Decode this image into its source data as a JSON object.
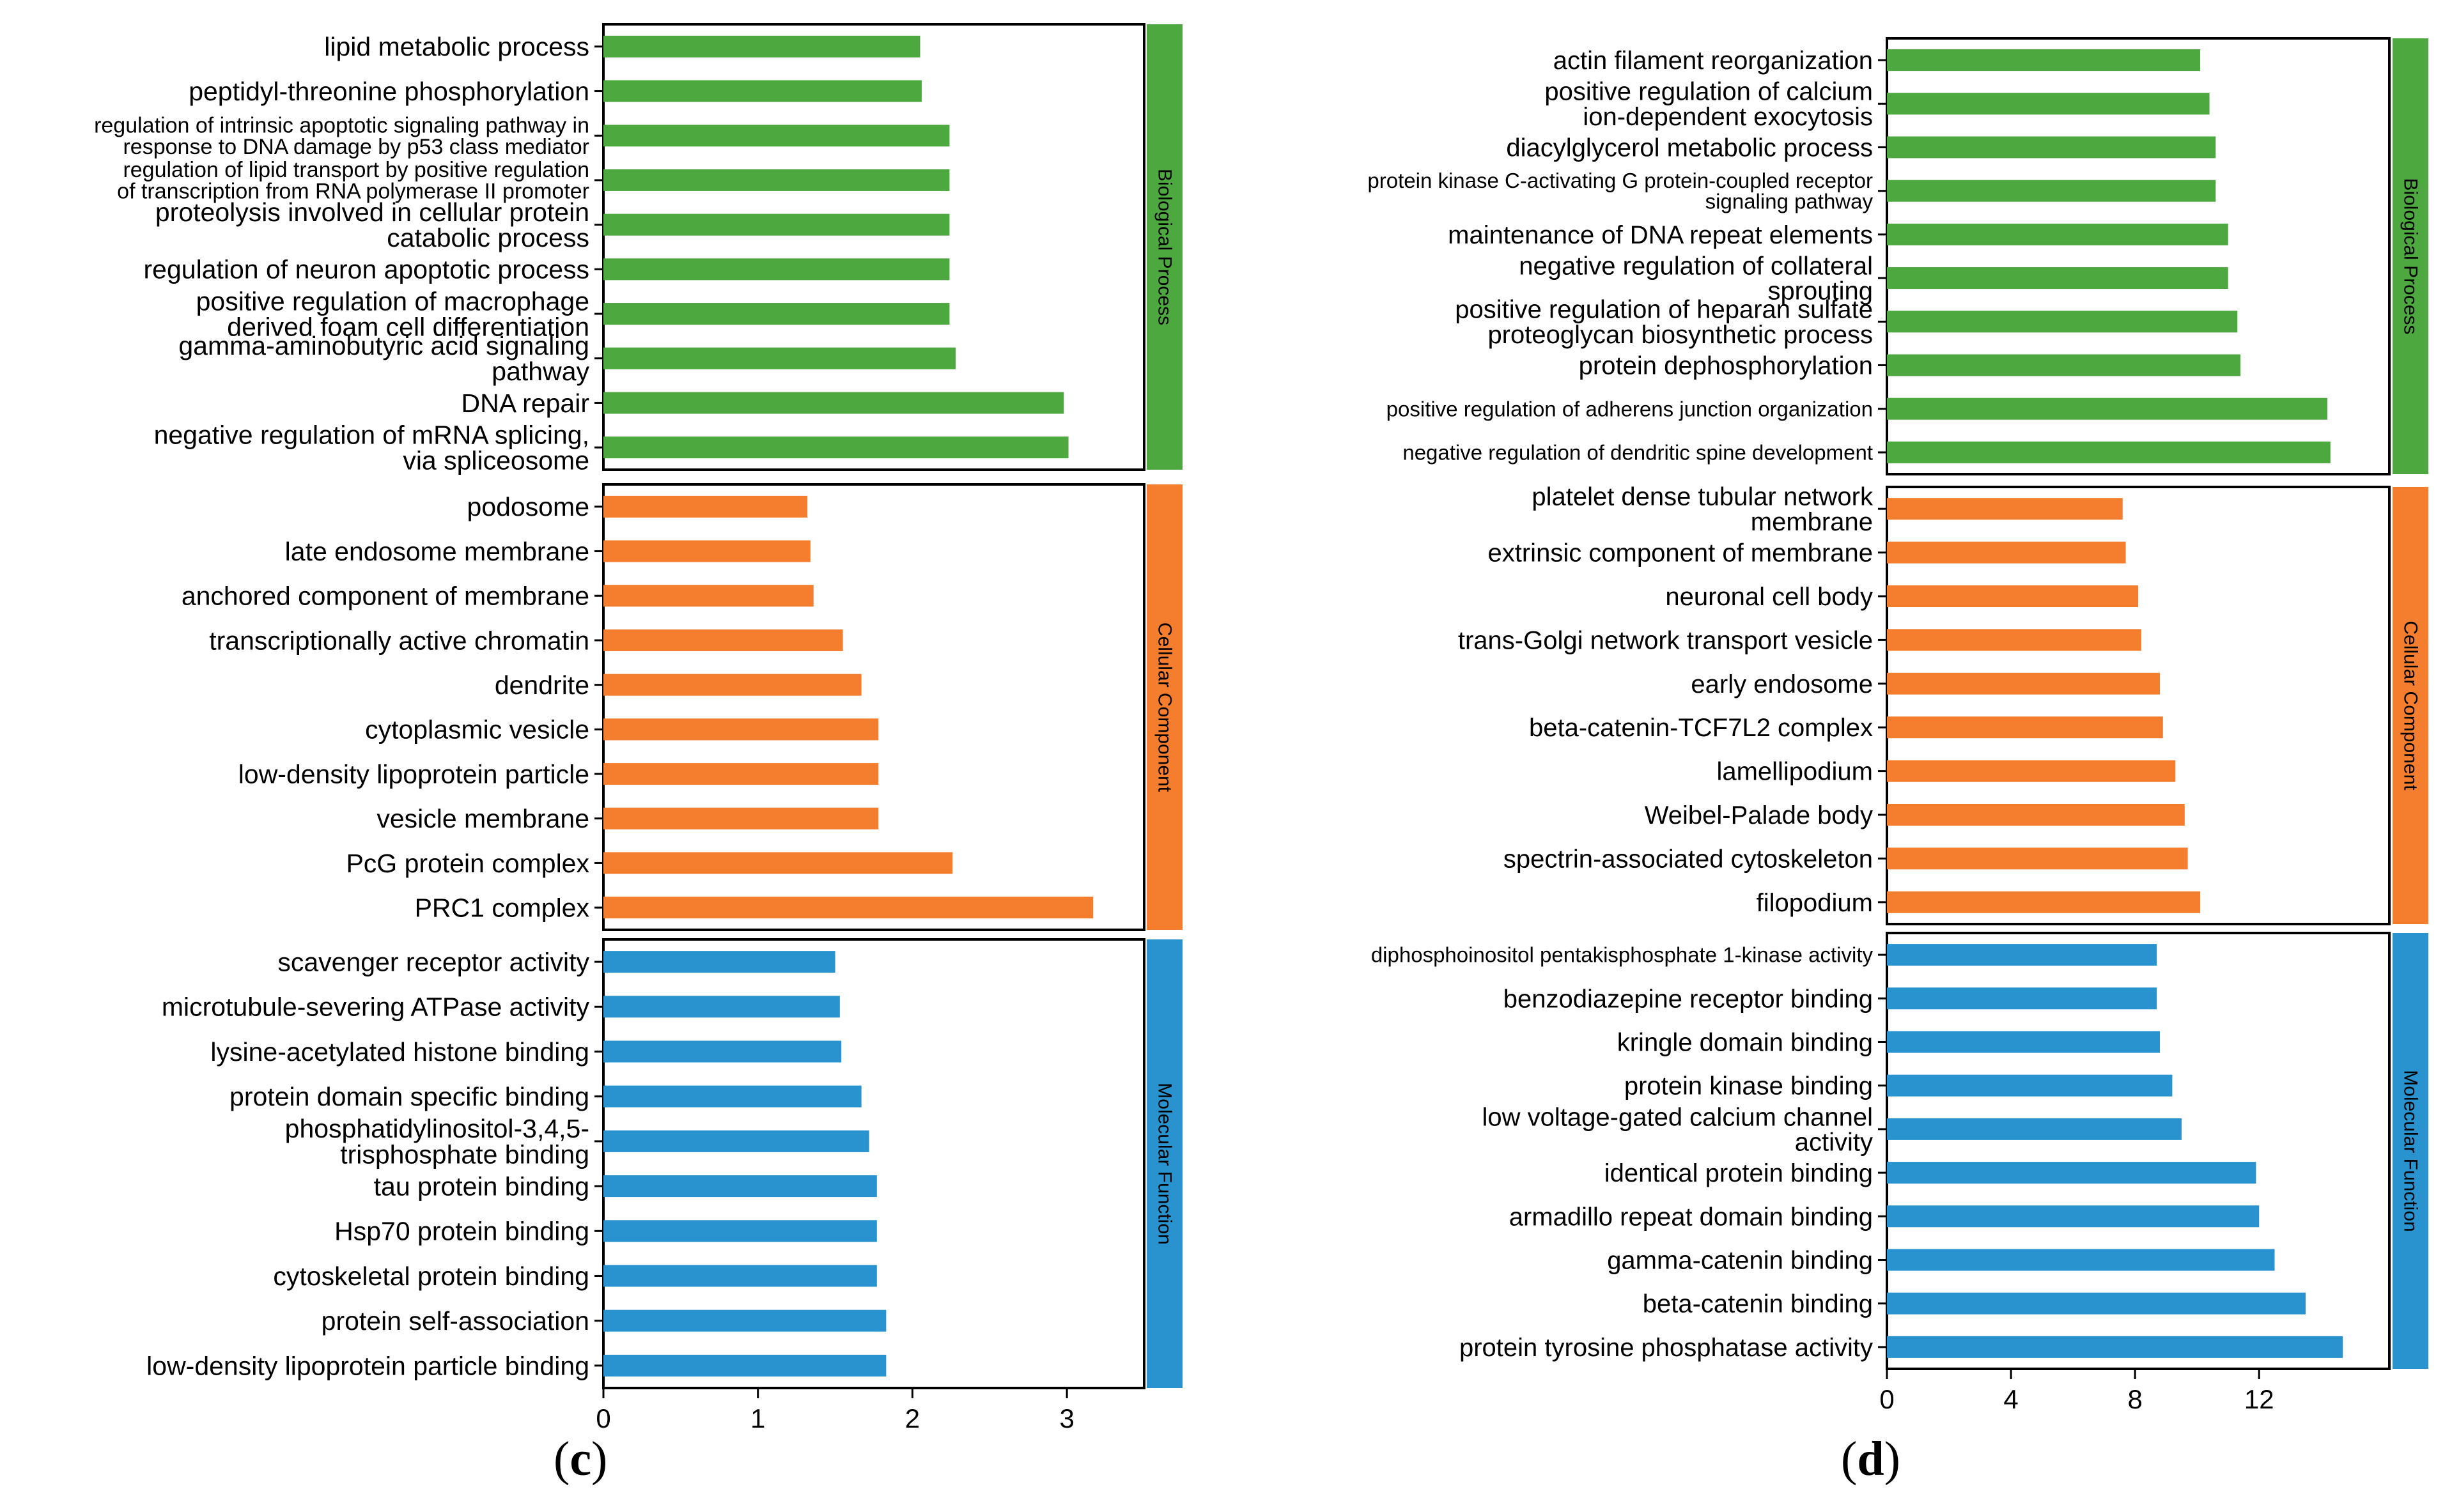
{
  "chart_data": [
    {
      "panel": "c",
      "type": "bar",
      "orientation": "horizontal",
      "x_ticks": [
        "0",
        "1",
        "2",
        "3"
      ],
      "xlim": [
        0,
        3.5
      ],
      "groups": [
        {
          "name": "Biological Process",
          "color": "#4EA840",
          "terms": [
            [
              "lipid metabolic process"
            ],
            [
              "peptidyl-threonine phosphorylation"
            ],
            [
              "regulation of intrinsic apoptotic signaling pathway in",
              "response to DNA damage by p53 class mediator"
            ],
            [
              "regulation of lipid transport by positive regulation",
              "of transcription from RNA polymerase II promoter"
            ],
            [
              "proteolysis involved in cellular protein",
              "catabolic process"
            ],
            [
              "regulation of neuron apoptotic process"
            ],
            [
              "positive regulation of macrophage",
              "derived foam cell differentiation"
            ],
            [
              "gamma-aminobutyric acid signaling",
              "pathway"
            ],
            [
              "DNA repair"
            ],
            [
              "negative regulation of mRNA splicing,",
              "via spliceosome"
            ]
          ],
          "values": [
            2.05,
            2.06,
            2.24,
            2.24,
            2.24,
            2.24,
            2.24,
            2.28,
            2.98,
            3.01
          ]
        },
        {
          "name": "Cellular Component",
          "color": "#F47E2E",
          "terms": [
            [
              "podosome"
            ],
            [
              "late endosome membrane"
            ],
            [
              "anchored component of membrane"
            ],
            [
              "transcriptionally active chromatin"
            ],
            [
              "dendrite"
            ],
            [
              "cytoplasmic vesicle"
            ],
            [
              "low-density lipoprotein particle"
            ],
            [
              "vesicle membrane"
            ],
            [
              "PcG protein complex"
            ],
            [
              "PRC1 complex"
            ]
          ],
          "values": [
            1.32,
            1.34,
            1.36,
            1.55,
            1.67,
            1.78,
            1.78,
            1.78,
            2.26,
            3.17
          ]
        },
        {
          "name": "Molecular Function",
          "color": "#2893CF",
          "terms": [
            [
              "scavenger receptor activity"
            ],
            [
              "microtubule-severing ATPase activity"
            ],
            [
              "lysine-acetylated histone binding"
            ],
            [
              "protein domain specific binding"
            ],
            [
              "phosphatidylinositol-3,4,5-",
              "trisphosphate binding"
            ],
            [
              "tau protein binding"
            ],
            [
              "Hsp70 protein binding"
            ],
            [
              "cytoskeletal protein binding"
            ],
            [
              "protein self-association"
            ],
            [
              "low-density lipoprotein particle binding"
            ]
          ],
          "values": [
            1.5,
            1.53,
            1.54,
            1.67,
            1.72,
            1.77,
            1.77,
            1.77,
            1.83,
            1.83
          ]
        }
      ],
      "caption": "(c)"
    },
    {
      "panel": "d",
      "type": "bar",
      "orientation": "horizontal",
      "x_ticks": [
        "0",
        "4",
        "8",
        "12"
      ],
      "xlim": [
        0,
        16.2
      ],
      "groups": [
        {
          "name": "Biological Process",
          "color": "#4EA840",
          "terms": [
            [
              "actin filament reorganization"
            ],
            [
              "positive regulation of calcium",
              "ion-dependent exocytosis"
            ],
            [
              "diacylglycerol metabolic process"
            ],
            [
              "protein kinase C-activating G protein-coupled receptor",
              "signaling pathway"
            ],
            [
              "maintenance of DNA repeat elements"
            ],
            [
              "negative regulation of collateral",
              "sprouting"
            ],
            [
              "positive regulation of heparan sulfate",
              "proteoglycan biosynthetic process"
            ],
            [
              "protein dephosphorylation"
            ],
            [
              "positive regulation of adherens junction organization"
            ],
            [
              "negative regulation of dendritic spine development"
            ]
          ],
          "values": [
            10.1,
            10.4,
            10.6,
            10.6,
            11.0,
            11.0,
            11.3,
            11.4,
            14.2,
            14.3
          ]
        },
        {
          "name": "Cellular Component",
          "color": "#F47E2E",
          "terms": [
            [
              "platelet dense tubular network",
              "membrane"
            ],
            [
              "extrinsic component of membrane"
            ],
            [
              "neuronal cell body"
            ],
            [
              "trans-Golgi network transport vesicle"
            ],
            [
              "early endosome"
            ],
            [
              "beta-catenin-TCF7L2 complex"
            ],
            [
              "lamellipodium"
            ],
            [
              "Weibel-Palade body"
            ],
            [
              "spectrin-associated cytoskeleton"
            ],
            [
              "filopodium"
            ]
          ],
          "values": [
            7.6,
            7.7,
            8.1,
            8.2,
            8.8,
            8.9,
            9.3,
            9.6,
            9.7,
            10.1
          ]
        },
        {
          "name": "Molecular Function",
          "color": "#2893CF",
          "terms": [
            [
              "diphosphoinositol pentakisphosphate 1-kinase activity"
            ],
            [
              "benzodiazepine receptor binding"
            ],
            [
              "kringle domain binding"
            ],
            [
              "protein kinase binding"
            ],
            [
              "low voltage-gated calcium channel",
              "activity"
            ],
            [
              "identical protein binding"
            ],
            [
              "armadillo repeat domain binding"
            ],
            [
              "gamma-catenin binding"
            ],
            [
              "beta-catenin binding"
            ],
            [
              "protein tyrosine phosphatase activity"
            ]
          ],
          "values": [
            8.7,
            8.7,
            8.8,
            9.2,
            9.5,
            11.9,
            12.0,
            12.5,
            13.5,
            14.7
          ]
        }
      ],
      "caption": "(d)"
    }
  ]
}
